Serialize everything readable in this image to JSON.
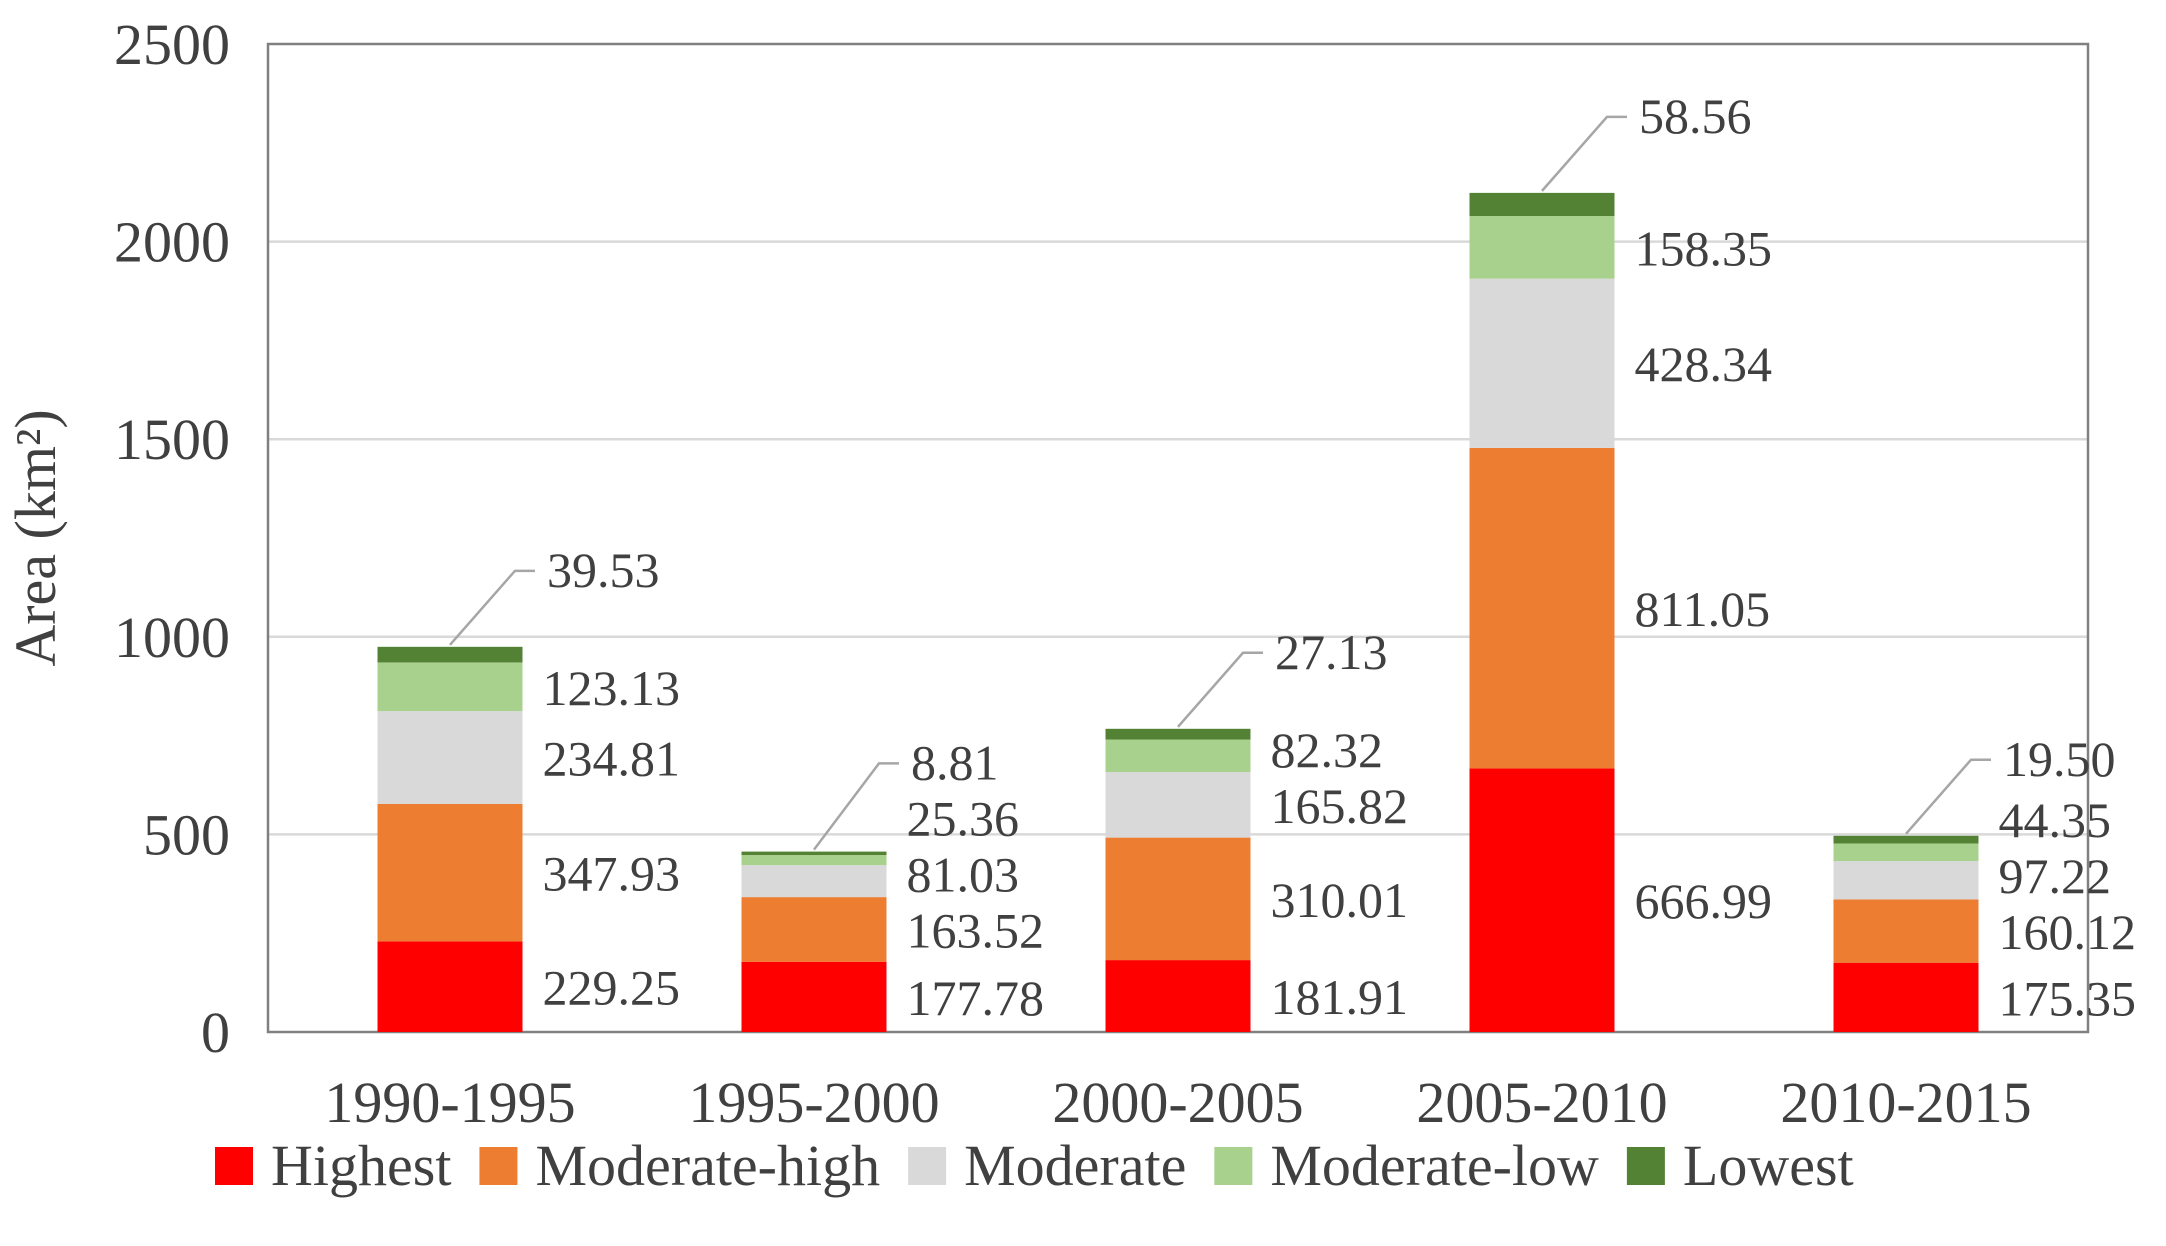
{
  "chart_data": {
    "type": "bar",
    "stacked": true,
    "title": "",
    "xlabel": "",
    "ylabel": "Area (km²)",
    "ylim": [
      0,
      2500
    ],
    "yticks": [
      0,
      500,
      1000,
      1500,
      2000,
      2500
    ],
    "grid": true,
    "legend_position": "bottom",
    "categories": [
      "1990-1995",
      "1995-2000",
      "2000-2005",
      "2005-2010",
      "2010-2015"
    ],
    "series": [
      {
        "name": "Highest",
        "color": "#ff0000",
        "values": [
          229.25,
          177.78,
          181.91,
          666.99,
          175.35
        ],
        "labels": [
          "229.25",
          "177.78",
          "181.91",
          "666.99",
          "175.35"
        ]
      },
      {
        "name": "Moderate-high",
        "color": "#ed7d31",
        "values": [
          347.93,
          163.52,
          310.01,
          811.05,
          160.12
        ],
        "labels": [
          "347.93",
          "163.52",
          "310.01",
          "811.05",
          "160.12"
        ]
      },
      {
        "name": "Moderate",
        "color": "#d9d9d9",
        "values": [
          234.81,
          81.03,
          165.82,
          428.34,
          97.22
        ],
        "labels": [
          "234.81",
          "81.03",
          "165.82",
          "428.34",
          "97.22"
        ]
      },
      {
        "name": "Moderate-low",
        "color": "#a9d18e",
        "values": [
          123.13,
          25.36,
          82.32,
          158.35,
          44.35
        ],
        "labels": [
          "123.13",
          "25.36",
          "82.32",
          "158.35",
          "44.35"
        ]
      },
      {
        "name": "Lowest",
        "color": "#548235",
        "values": [
          39.53,
          8.81,
          27.13,
          58.56,
          19.5
        ],
        "labels": [
          "39.53",
          "8.81",
          "27.13",
          "58.56",
          "19.50"
        ]
      }
    ]
  }
}
